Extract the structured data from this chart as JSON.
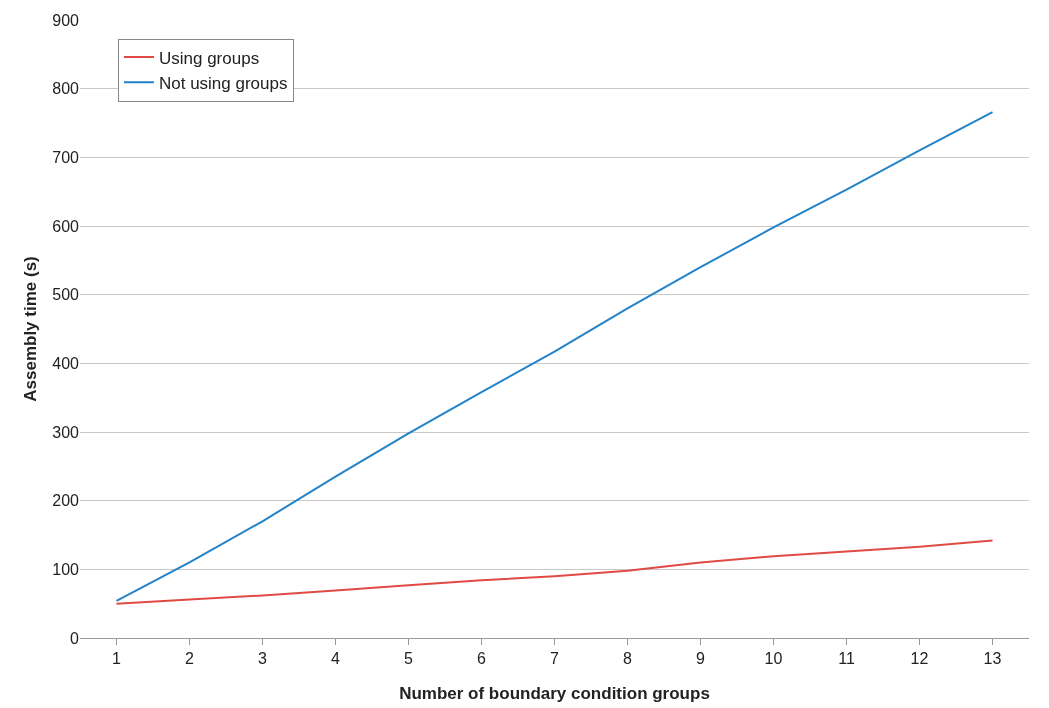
{
  "chart_data": {
    "type": "line",
    "xlabel": "Number of boundary condition groups",
    "ylabel": "Assembly time (s)",
    "x": [
      1,
      2,
      3,
      4,
      5,
      6,
      7,
      8,
      9,
      10,
      11,
      12,
      13
    ],
    "series": [
      {
        "name": "Using groups",
        "color": "#e04a44",
        "values": [
          50,
          56,
          62,
          69,
          77,
          84,
          90,
          98,
          110,
          119,
          126,
          133,
          142
        ]
      },
      {
        "name": "Not using groups",
        "color": "#2383c8",
        "values": [
          54,
          110,
          170,
          235,
          298,
          358,
          417,
          480,
          540,
          598,
          653,
          710,
          766
        ]
      }
    ],
    "xlim": [
      0.5,
      13.5
    ],
    "xticks": [
      1,
      2,
      3,
      4,
      5,
      6,
      7,
      8,
      9,
      10,
      11,
      12,
      13
    ],
    "ylim": [
      0,
      900
    ],
    "yticks": [
      0,
      100,
      200,
      300,
      400,
      500,
      600,
      700,
      800,
      900
    ],
    "grid": "y",
    "legend": "top left",
    "marker": "none",
    "line_style": "solid"
  }
}
